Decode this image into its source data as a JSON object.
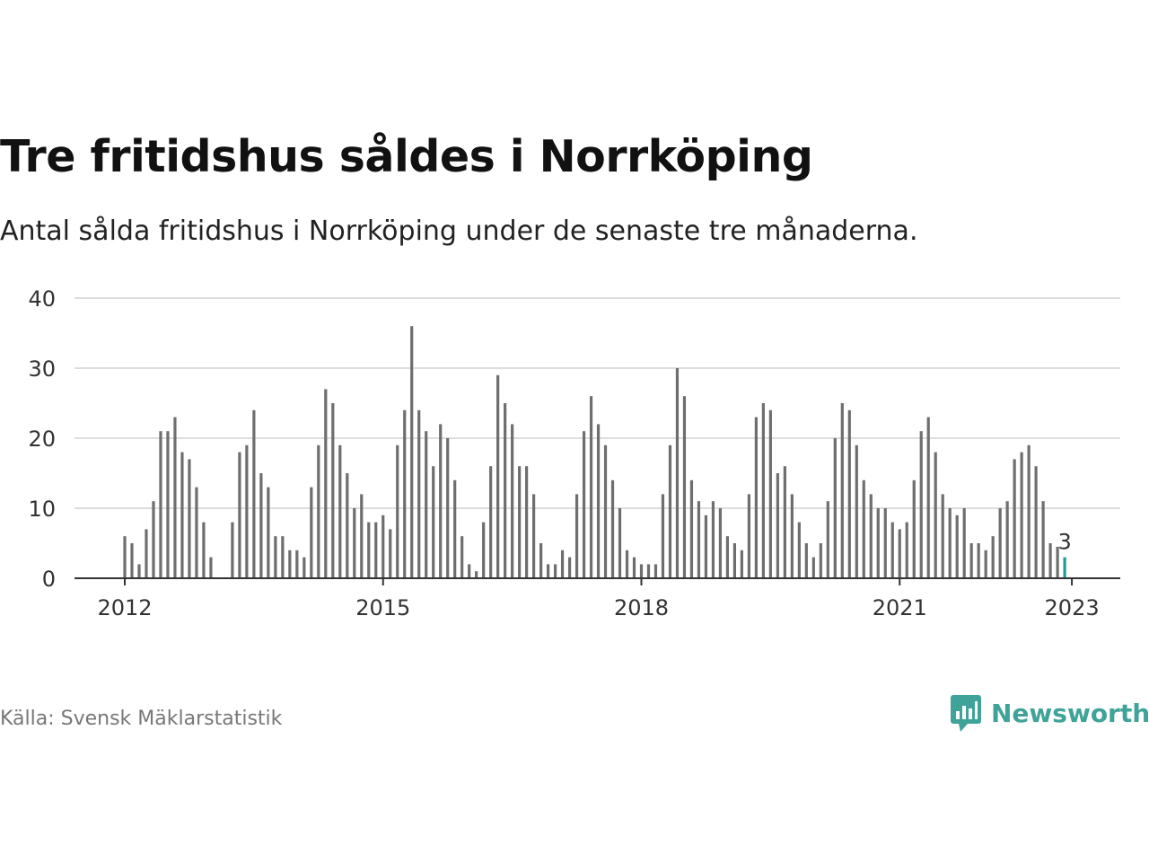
{
  "header": {
    "title": "Tre fritidshus såldes i Norrköping",
    "subtitle": "Antal sålda fritidshus i Norrköping under de senaste tre månaderna."
  },
  "footer": {
    "source": "Källa: Svensk Mäklarstatistik",
    "brand": "Newsworthy",
    "brand_icon": "bar-chart-speech-bubble-icon"
  },
  "colors": {
    "bar": "#6e6e6e",
    "highlight": "#1a9e97",
    "grid": "#dddddd",
    "axis": "#333333",
    "brand": "#3fa39a"
  },
  "chart_data": {
    "type": "bar",
    "start": "2012-01",
    "frequency": "monthly",
    "values": [
      6,
      5,
      2,
      7,
      11,
      21,
      21,
      23,
      18,
      17,
      13,
      8,
      3,
      0,
      0,
      8,
      18,
      19,
      24,
      15,
      13,
      6,
      6,
      4,
      4,
      3,
      13,
      19,
      27,
      25,
      19,
      15,
      10,
      12,
      8,
      8,
      9,
      7,
      19,
      24,
      36,
      24,
      21,
      16,
      22,
      20,
      14,
      6,
      2,
      1,
      8,
      16,
      29,
      25,
      22,
      16,
      16,
      12,
      5,
      2,
      2,
      4,
      3,
      12,
      21,
      26,
      22,
      19,
      14,
      10,
      4,
      3,
      2,
      2,
      2,
      12,
      19,
      30,
      26,
      14,
      11,
      9,
      11,
      10,
      6,
      5,
      4,
      12,
      23,
      25,
      24,
      15,
      16,
      12,
      8,
      5,
      3,
      5,
      11,
      20,
      25,
      24,
      19,
      14,
      12,
      10,
      10,
      8,
      7,
      8,
      14,
      21,
      23,
      18,
      12,
      10,
      9,
      10,
      5,
      5,
      4,
      6,
      10,
      11,
      17,
      18,
      19,
      16,
      11,
      5,
      4.5,
      3
    ],
    "x_ticks": [
      "2012",
      "2015",
      "2018",
      "2021",
      "2023"
    ],
    "y_ticks": [
      0,
      10,
      20,
      30,
      40
    ],
    "ylim": [
      0,
      40
    ],
    "highlight_label": "3",
    "grid": true,
    "legend": "none"
  }
}
